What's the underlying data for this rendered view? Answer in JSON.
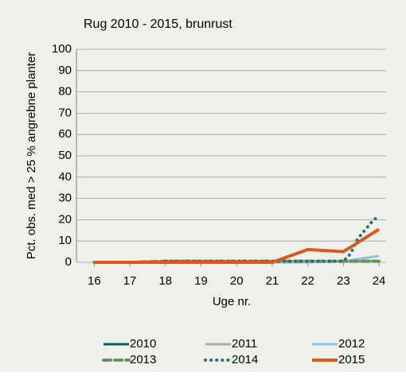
{
  "chart_data": {
    "type": "line",
    "title": "Rug 2010 - 2015, brunrust",
    "xlabel": "Uge nr.",
    "ylabel": "Pct. obs. med > 25 % angrebne planter",
    "x": [
      16,
      17,
      18,
      19,
      20,
      21,
      22,
      23,
      23.2,
      23.4,
      23.6,
      23.8,
      24
    ],
    "xlim": [
      15.5,
      24.2
    ],
    "xticks": [
      16,
      17,
      18,
      19,
      20,
      21,
      22,
      23,
      24
    ],
    "ylim": [
      0,
      100
    ],
    "yticks": [
      0,
      10,
      20,
      30,
      40,
      50,
      60,
      70,
      80,
      90,
      100
    ],
    "grid": true,
    "legend": "bottom",
    "series": [
      {
        "name": "2010",
        "color": "#0b5b5b",
        "style": "solid",
        "values": [
          0,
          0,
          0.5,
          0.5,
          0.5,
          0.5,
          0.5,
          0.5,
          0.5,
          0.5,
          0.5,
          0.5,
          0.5
        ]
      },
      {
        "name": "2011",
        "color": "#a9ad98",
        "style": "solid",
        "values": [
          0,
          0,
          0.5,
          0.5,
          0.5,
          0.5,
          0.5,
          0.5,
          0.5,
          0.5,
          0.5,
          0.5,
          0.5
        ]
      },
      {
        "name": "2012",
        "color": "#8ec3e0",
        "style": "solid",
        "values": [
          0,
          0,
          0,
          0,
          0,
          0,
          0,
          0.5,
          1,
          1.5,
          2,
          2.5,
          3
        ]
      },
      {
        "name": "2013",
        "color": "#6b8f5e",
        "style": "dashed",
        "values": [
          0,
          0,
          0.5,
          0.5,
          0.5,
          0.5,
          0.5,
          0.5,
          0.5,
          0.5,
          0.5,
          0.5,
          0.5
        ]
      },
      {
        "name": "2014",
        "color": "#2b6f75",
        "style": "dotted",
        "values": [
          null,
          null,
          0.5,
          0.5,
          0.5,
          0.5,
          0.5,
          0.5,
          4,
          11,
          15,
          19,
          22
        ]
      },
      {
        "name": "2015",
        "color": "#d65a1e",
        "style": "solid",
        "values": [
          0,
          0,
          0,
          0,
          0,
          0,
          6,
          5,
          7.1,
          9.2,
          11.3,
          13.4,
          15.5
        ]
      }
    ]
  }
}
